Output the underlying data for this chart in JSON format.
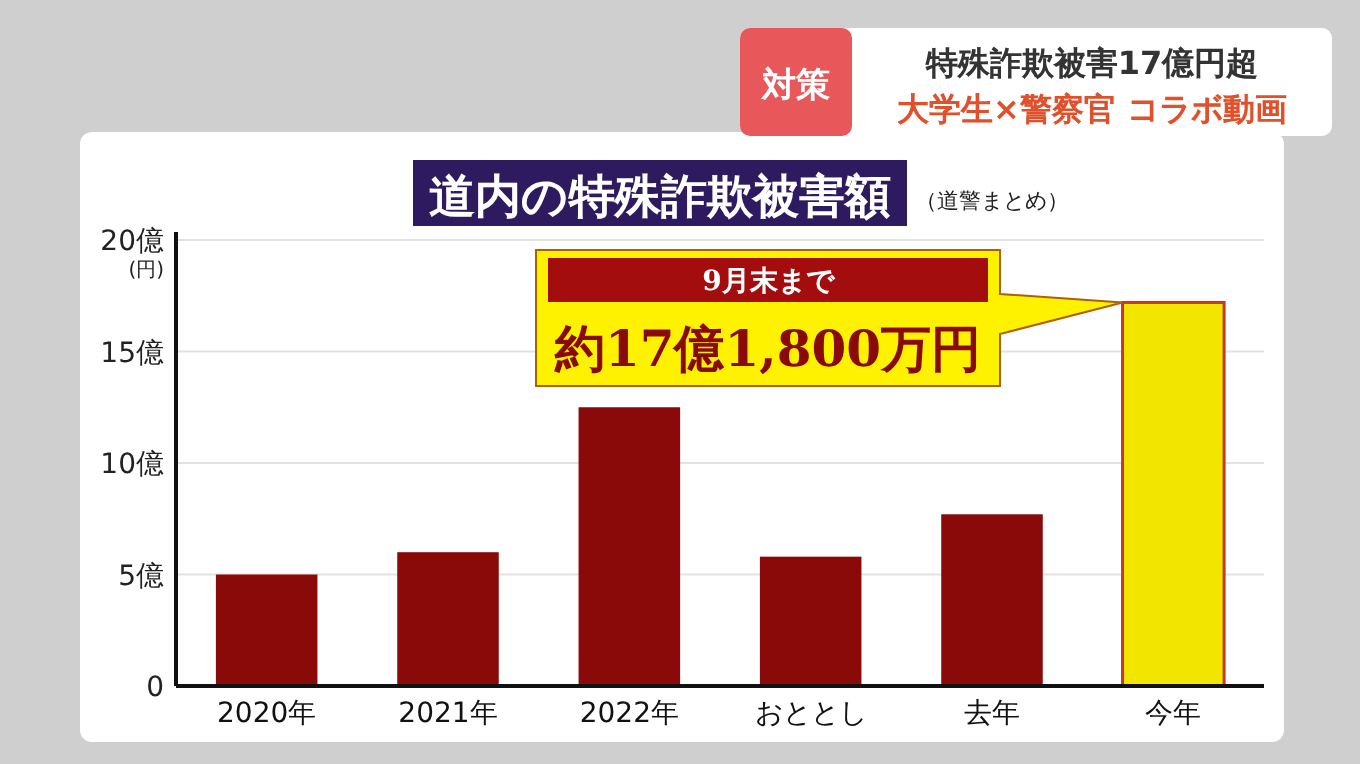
{
  "chart_data": {
    "type": "bar",
    "title": "道内の特殊詐欺被害額",
    "subtitle": "（道警まとめ）",
    "categories": [
      "2020年",
      "2021年",
      "2022年",
      "おととし",
      "去年",
      "今年"
    ],
    "values": [
      5.0,
      6.0,
      12.5,
      5.8,
      7.7,
      17.2
    ],
    "colors": [
      "#8a0a0a",
      "#8a0a0a",
      "#8a0a0a",
      "#8a0a0a",
      "#8a0a0a",
      "#f2e600"
    ],
    "ylim": [
      0,
      20
    ],
    "yticks": [
      0,
      {
        "value": 5,
        "label": "5億"
      },
      {
        "value": 10,
        "label": "10億"
      },
      {
        "value": 15,
        "label": "15億"
      },
      {
        "value": 20,
        "label": "20億\n(円)"
      }
    ],
    "grid": "y",
    "annotations": [
      "対策",
      "特殊詐欺被害17億円超",
      "大学生×警察官 コラボ動画",
      "9月末まで",
      "約17億1,800万円"
    ]
  }
}
